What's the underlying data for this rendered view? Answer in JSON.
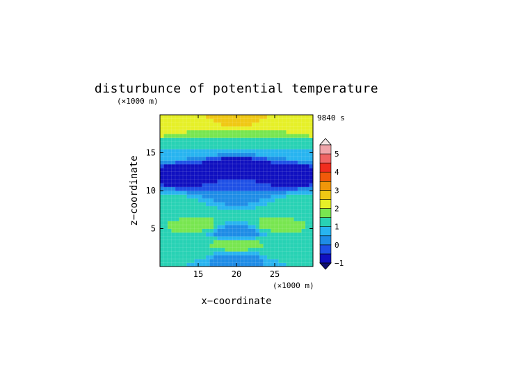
{
  "chart_data": {
    "type": "heatmap",
    "title": "disturbunce of potential temperature",
    "time_label": "9840 s",
    "xlabel": "x−coordinate",
    "ylabel": "z−coordinate",
    "x_unit": "(×1000 m)",
    "y_unit": "(×1000 m)",
    "xlim": [
      10,
      30
    ],
    "ylim": [
      0,
      20
    ],
    "x_ticks": [
      15,
      20,
      25
    ],
    "y_ticks": [
      5,
      10,
      15
    ],
    "colorbar": {
      "levels": [
        -1,
        -0.5,
        0,
        0.5,
        1,
        1.5,
        2,
        2.5,
        3,
        3.5,
        4,
        4.5,
        5
      ],
      "tick_labels": [
        "−1",
        "0",
        "1",
        "2",
        "3",
        "4",
        "5"
      ],
      "colors": [
        "#1010c0",
        "#1e50e6",
        "#1e8ce6",
        "#28b4f0",
        "#28d2b4",
        "#78e650",
        "#e6f028",
        "#f0c814",
        "#f0960a",
        "#f05a0a",
        "#f02d1e",
        "#f06464",
        "#f0a5aa"
      ],
      "extend_low_color": "#101070",
      "extend_high_color": "#f5e6e6"
    },
    "values_description_rows": "z from 0 to 20 km, x from 10 to 30 km",
    "grid_resolution": [
      40,
      40
    ],
    "features": [
      {
        "x": 10,
        "z": 18.5,
        "value": 2.5
      },
      {
        "x": 16,
        "z": 18.3,
        "value": 2.0
      },
      {
        "x": 20,
        "z": 19.3,
        "value": 3.0
      },
      {
        "x": 24,
        "z": 18.3,
        "value": 2.0
      },
      {
        "x": 30,
        "z": 18.5,
        "value": 2.5
      },
      {
        "x": 20,
        "z": 17.0,
        "value": 1.5
      },
      {
        "x": 15,
        "z": 16.0,
        "value": 1.0
      },
      {
        "x": 25,
        "z": 16.0,
        "value": 1.0
      },
      {
        "x": 10,
        "z": 15.5,
        "value": 1.0
      },
      {
        "x": 30,
        "z": 15.5,
        "value": 1.0
      },
      {
        "x": 20,
        "z": 13.2,
        "value": -1.0
      },
      {
        "x": 14,
        "z": 12.2,
        "value": -1.0
      },
      {
        "x": 26,
        "z": 12.2,
        "value": -1.0
      },
      {
        "x": 20,
        "z": 10.0,
        "value": 0.0
      },
      {
        "x": 12,
        "z": 8.0,
        "value": 1.2
      },
      {
        "x": 28,
        "z": 8.0,
        "value": 1.2
      },
      {
        "x": 15,
        "z": 5.5,
        "value": 1.6
      },
      {
        "x": 25,
        "z": 5.5,
        "value": 1.6
      },
      {
        "x": 20,
        "z": 4.5,
        "value": 0.0
      },
      {
        "x": 20,
        "z": 3.0,
        "value": 1.8
      },
      {
        "x": 14,
        "z": 2.5,
        "value": 1.5
      },
      {
        "x": 26,
        "z": 2.5,
        "value": 1.5
      },
      {
        "x": 20,
        "z": 1.0,
        "value": 0.3
      }
    ]
  }
}
